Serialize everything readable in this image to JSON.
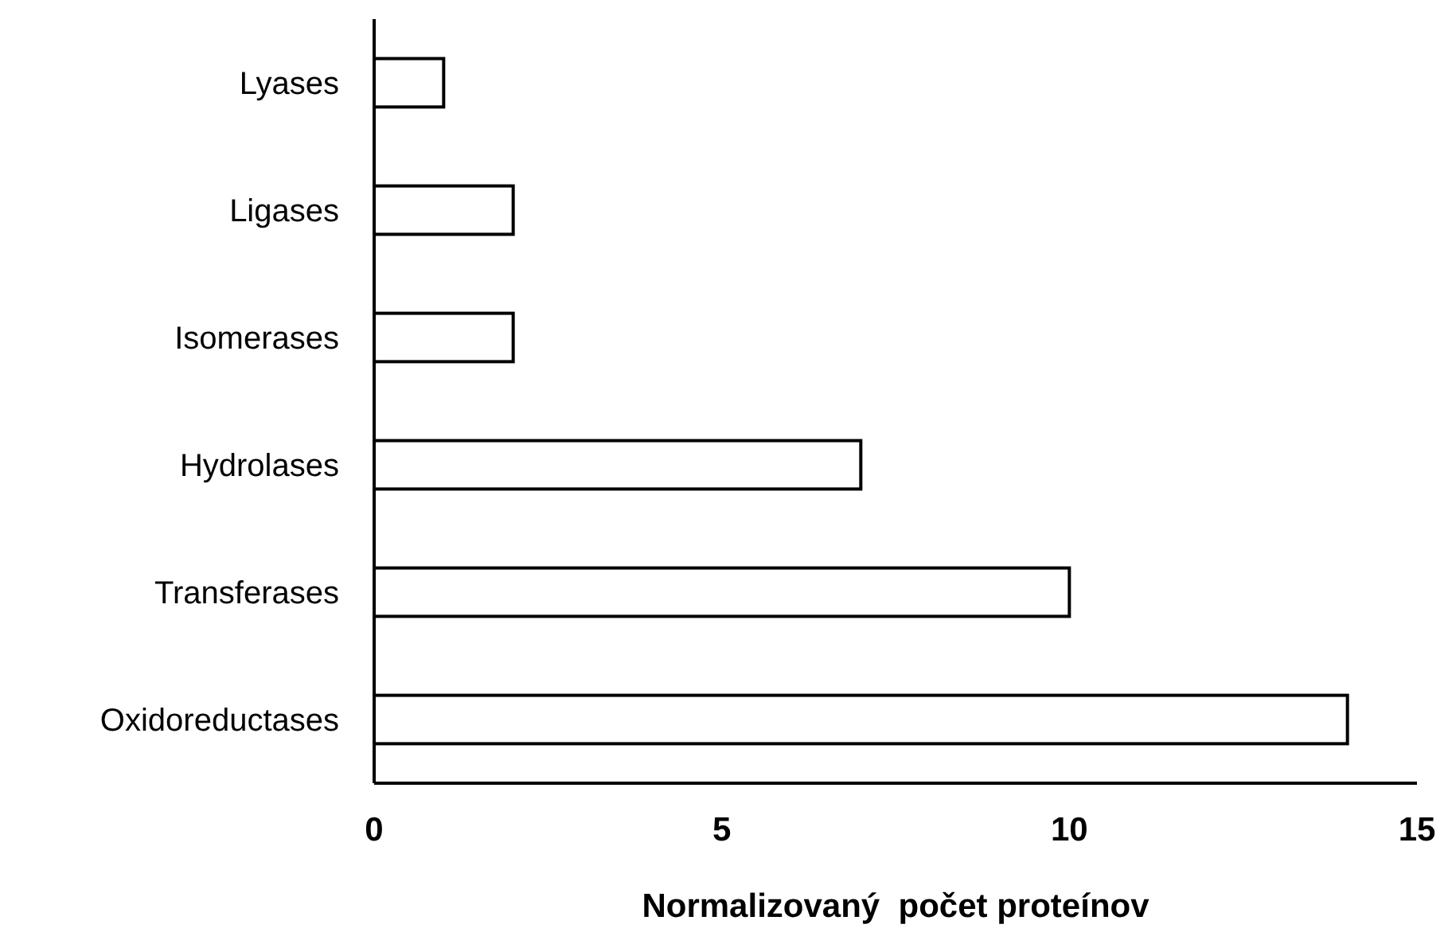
{
  "chart_data": {
    "type": "bar",
    "orientation": "horizontal",
    "xlabel": "Normalizovaný  počet proteínov",
    "categories": [
      "Lyases",
      "Ligases",
      "Isomerases",
      "Hydrolases",
      "Transferases",
      "Oxidoreductases"
    ],
    "values": [
      1,
      2,
      2,
      7,
      10,
      14
    ],
    "color": "#ffffff",
    "xlim": [
      0,
      15
    ],
    "xticks": [
      0,
      5,
      10,
      15
    ],
    "grid": false
  }
}
